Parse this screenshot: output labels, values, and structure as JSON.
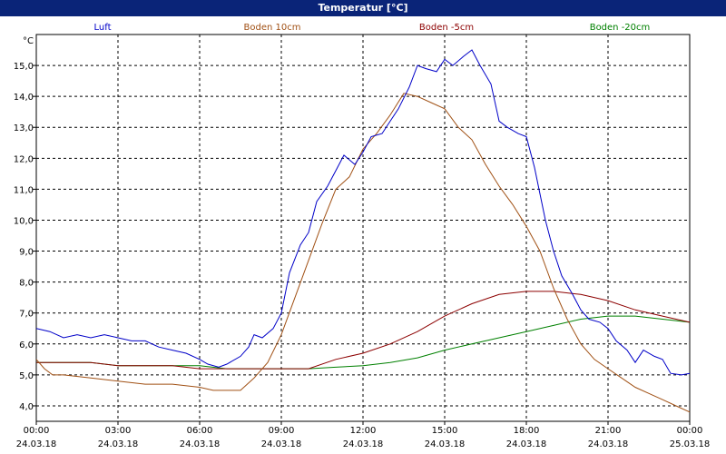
{
  "window": {
    "title": "Temperatur [°C]"
  },
  "chart_data": {
    "type": "line",
    "title": "Temperatur [°C]",
    "ylabel": "°C",
    "ylim": [
      3.5,
      16.0
    ],
    "yticks": [
      4.0,
      5.0,
      6.0,
      7.0,
      8.0,
      9.0,
      10.0,
      11.0,
      12.0,
      13.0,
      14.0,
      15.0
    ],
    "ytick_labels": [
      "4,0",
      "5,0",
      "6,0",
      "7,0",
      "8,0",
      "9,0",
      "10,0",
      "11,0",
      "12,0",
      "13,0",
      "14,0",
      "15,0"
    ],
    "xlim": [
      0,
      24
    ],
    "xticks": [
      {
        "x": 0,
        "time": "00:00",
        "date": "24.03.18"
      },
      {
        "x": 3,
        "time": "03:00",
        "date": "24.03.18"
      },
      {
        "x": 6,
        "time": "06:00",
        "date": "24.03.18"
      },
      {
        "x": 9,
        "time": "09:00",
        "date": "24.03.18"
      },
      {
        "x": 12,
        "time": "12:00",
        "date": "24.03.18"
      },
      {
        "x": 15,
        "time": "15:00",
        "date": "24.03.18"
      },
      {
        "x": 18,
        "time": "18:00",
        "date": "24.03.18"
      },
      {
        "x": 21,
        "time": "21:00",
        "date": "24.03.18"
      },
      {
        "x": 24,
        "time": "00:00",
        "date": "25.03.18"
      }
    ],
    "grid": true,
    "legend_position": "top",
    "series": [
      {
        "name": "Luft",
        "color": "#0000c8",
        "x": [
          0,
          0.5,
          1,
          1.5,
          2,
          2.5,
          3,
          3.5,
          4,
          4.5,
          5,
          5.5,
          6,
          6.3,
          6.7,
          7,
          7.5,
          7.8,
          8,
          8.3,
          8.7,
          9,
          9.3,
          9.7,
          10,
          10.3,
          10.7,
          11,
          11.3,
          11.7,
          12,
          12.3,
          12.7,
          13,
          13.3,
          13.7,
          14,
          14.3,
          14.7,
          15,
          15.3,
          15.7,
          16,
          16.3,
          16.7,
          17,
          17.3,
          17.7,
          18,
          18.3,
          18.7,
          19,
          19.3,
          19.7,
          20,
          20.3,
          20.7,
          21,
          21.3,
          21.7,
          22,
          22.3,
          22.7,
          23,
          23.3,
          23.7,
          24
        ],
        "y": [
          6.5,
          6.4,
          6.2,
          6.3,
          6.2,
          6.3,
          6.2,
          6.1,
          6.1,
          5.9,
          5.8,
          5.7,
          5.5,
          5.35,
          5.25,
          5.35,
          5.6,
          5.9,
          6.3,
          6.2,
          6.5,
          7.0,
          8.3,
          9.2,
          9.6,
          10.6,
          11.1,
          11.6,
          12.1,
          11.8,
          12.2,
          12.7,
          12.8,
          13.2,
          13.6,
          14.3,
          15.0,
          14.9,
          14.8,
          15.2,
          15.0,
          15.3,
          15.5,
          15.0,
          14.4,
          13.2,
          13.0,
          12.8,
          12.7,
          11.7,
          10.0,
          9.0,
          8.2,
          7.6,
          7.1,
          6.8,
          6.7,
          6.5,
          6.1,
          5.8,
          5.4,
          5.8,
          5.6,
          5.5,
          5.05,
          5.0,
          5.05
        ]
      },
      {
        "name": "Boden 10cm",
        "color": "#a05014",
        "x": [
          0,
          0.3,
          0.6,
          1,
          2,
          3,
          4,
          5,
          6,
          6.5,
          7,
          7.5,
          8,
          8.5,
          9,
          9.5,
          10,
          10.5,
          11,
          11.5,
          12,
          12.5,
          13,
          13.5,
          14,
          14.5,
          15,
          15.5,
          16,
          16.5,
          17,
          17.5,
          18,
          18.5,
          19,
          19.5,
          20,
          20.5,
          21,
          21.5,
          22,
          22.5,
          23,
          23.5,
          24
        ],
        "y": [
          5.5,
          5.2,
          5.0,
          5.0,
          4.9,
          4.8,
          4.7,
          4.7,
          4.6,
          4.5,
          4.5,
          4.5,
          4.9,
          5.4,
          6.3,
          7.5,
          8.7,
          9.9,
          11.0,
          11.4,
          12.3,
          12.8,
          13.4,
          14.1,
          14.0,
          13.8,
          13.6,
          13.0,
          12.6,
          11.8,
          11.1,
          10.5,
          9.8,
          9.0,
          7.8,
          6.8,
          6.0,
          5.5,
          5.2,
          4.9,
          4.6,
          4.4,
          4.2,
          4.0,
          3.8
        ]
      },
      {
        "name": "Boden -5cm",
        "color": "#8c0000",
        "x": [
          0,
          1,
          2,
          3,
          4,
          5,
          6,
          7,
          8,
          9,
          10,
          11,
          12,
          13,
          14,
          15,
          16,
          17,
          18,
          19,
          20,
          21,
          22,
          23,
          24
        ],
        "y": [
          5.4,
          5.4,
          5.4,
          5.3,
          5.3,
          5.3,
          5.2,
          5.2,
          5.2,
          5.2,
          5.2,
          5.5,
          5.7,
          6.0,
          6.4,
          6.9,
          7.3,
          7.6,
          7.7,
          7.7,
          7.6,
          7.4,
          7.1,
          6.9,
          6.7
        ]
      },
      {
        "name": "Boden -20cm",
        "color": "#008000",
        "x": [
          0,
          1,
          2,
          3,
          4,
          5,
          6,
          7,
          8,
          9,
          10,
          11,
          12,
          13,
          14,
          15,
          16,
          17,
          18,
          19,
          20,
          21,
          22,
          23,
          24
        ],
        "y": [
          5.4,
          5.4,
          5.4,
          5.3,
          5.3,
          5.3,
          5.3,
          5.2,
          5.2,
          5.2,
          5.2,
          5.25,
          5.3,
          5.4,
          5.55,
          5.8,
          6.0,
          6.2,
          6.4,
          6.6,
          6.8,
          6.9,
          6.9,
          6.8,
          6.7
        ]
      }
    ]
  }
}
